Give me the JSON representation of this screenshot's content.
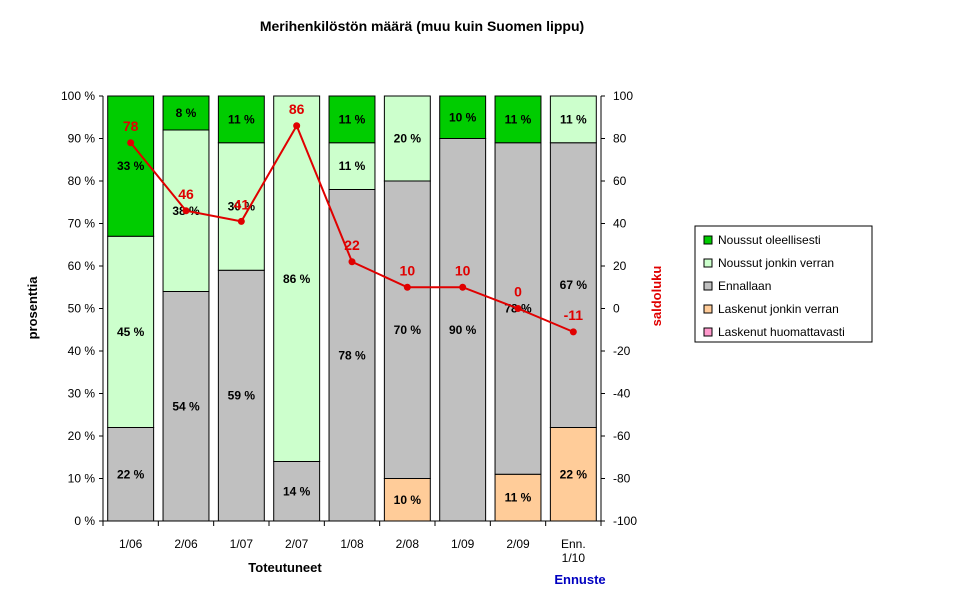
{
  "chart_data": {
    "type": "bar",
    "title": "Merihenkilöstön määrä (muu kuin Suomen lippu)",
    "ylabel_left": "prosenttia",
    "ylabel_right": "saldoluku",
    "xlabel": "Toteutuneet",
    "xlabel_forecast": "Ennuste",
    "left_ticks": [
      "0 %",
      "10 %",
      "20 %",
      "30 %",
      "40 %",
      "50 %",
      "60 %",
      "70 %",
      "80 %",
      "90 %",
      "100 %"
    ],
    "right_ticks": [
      "-100",
      "-80",
      "-60",
      "-40",
      "-20",
      "0",
      "20",
      "40",
      "60",
      "80",
      "100"
    ],
    "ylim_left": [
      0,
      100
    ],
    "ylim_right": [
      -100,
      100
    ],
    "categories": [
      "1/06",
      "2/06",
      "1/07",
      "2/07",
      "1/08",
      "2/08",
      "1/09",
      "2/09",
      "Enn.\n1/10"
    ],
    "series": [
      {
        "name": "Laskenut huomattavasti",
        "color": "#ff99cc",
        "values": [
          0,
          0,
          0,
          0,
          0,
          0,
          0,
          0,
          0
        ],
        "labels": [
          "",
          "",
          "",
          "",
          "",
          "",
          "",
          "",
          ""
        ]
      },
      {
        "name": "Laskenut jonkin verran",
        "color": "#ffcc99",
        "values": [
          0,
          0,
          0,
          0,
          0,
          10,
          0,
          11,
          22
        ],
        "labels": [
          "",
          "",
          "",
          "",
          "",
          "10 %",
          "",
          "11 %",
          "22 %"
        ]
      },
      {
        "name": "Ennallaan",
        "color": "#c0c0c0",
        "values": [
          22,
          54,
          59,
          14,
          78,
          70,
          90,
          78,
          67
        ],
        "labels": [
          "22 %",
          "54 %",
          "59 %",
          "14 %",
          "78 %",
          "70 %",
          "90 %",
          "78 %",
          "67 %"
        ]
      },
      {
        "name": "Noussut jonkin verran",
        "color": "#ccffcc",
        "values": [
          45,
          38,
          30,
          86,
          11,
          20,
          0,
          0,
          11
        ],
        "labels": [
          "45 %",
          "38 %",
          "30 %",
          "86 %",
          "11 %",
          "20 %",
          "",
          "",
          "11 %"
        ]
      },
      {
        "name": "Noussut oleellisesti",
        "color": "#00cc00",
        "values": [
          33,
          8,
          11,
          0,
          11,
          0,
          10,
          11,
          0
        ],
        "labels": [
          "33 %",
          "8 %",
          "11 %",
          "",
          "11 %",
          "",
          "10 %",
          "11 %",
          ""
        ]
      }
    ],
    "legend_order": [
      "Noussut oleellisesti",
      "Noussut jonkin verran",
      "Ennallaan",
      "Laskenut jonkin verran",
      "Laskenut huomattavasti"
    ],
    "line": {
      "color": "#e00000",
      "values": [
        78,
        46,
        41,
        86,
        22,
        10,
        10,
        0,
        -11
      ],
      "labels": [
        "78",
        "46",
        "41",
        "86",
        "22",
        "10",
        "10",
        "0",
        "-11"
      ]
    },
    "legend_position": "right",
    "grid": false
  }
}
